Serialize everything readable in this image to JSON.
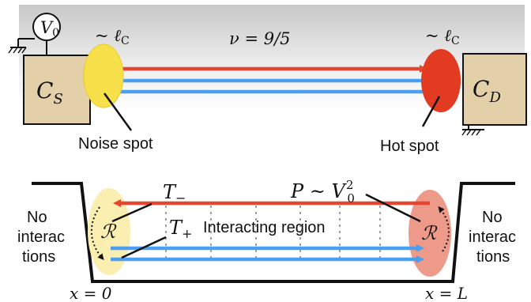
{
  "top_panel": {
    "filling_label": "ν = 9/5",
    "source_contact_label": "C",
    "source_contact_sub": "S",
    "drain_contact_label": "C",
    "drain_contact_sub": "D",
    "voltage_label": "V",
    "voltage_sub": "0",
    "length_scale_prefix": "~ ℓ",
    "length_scale_sub": "C",
    "noise_spot_label": "Noise spot",
    "hot_spot_label": "Hot spot",
    "colors": {
      "contact_fill": "#e3cfa8",
      "noise_spot": "#f7e04a",
      "hot_spot": "#e23b22",
      "red_edge": "#e64530",
      "blue_edge": "#4a9ff0",
      "gradient_dark": "#c8c8c8"
    }
  },
  "bottom_panel": {
    "t_minus_label": "T",
    "t_minus_sub": "−",
    "t_plus_label": "T",
    "t_plus_sub": "+",
    "power_label": "P ~ V",
    "power_sub": "0",
    "power_sup": "2",
    "interacting_region_label": "Interacting region",
    "reservoir_symbol": "ℛ",
    "left_no_interactions": [
      "No",
      "interac",
      "tions"
    ],
    "right_no_interactions": [
      "No",
      "interac",
      "tions"
    ],
    "left_boundary_label": "x = 0",
    "right_boundary_label": "x = L",
    "colors": {
      "left_reservoir": "#faeeb0",
      "right_reservoir": "#ee9a8a",
      "red_edge": "#e64530",
      "blue_edge": "#4a9ff0",
      "dashed_line": "#a0a0a0"
    }
  }
}
